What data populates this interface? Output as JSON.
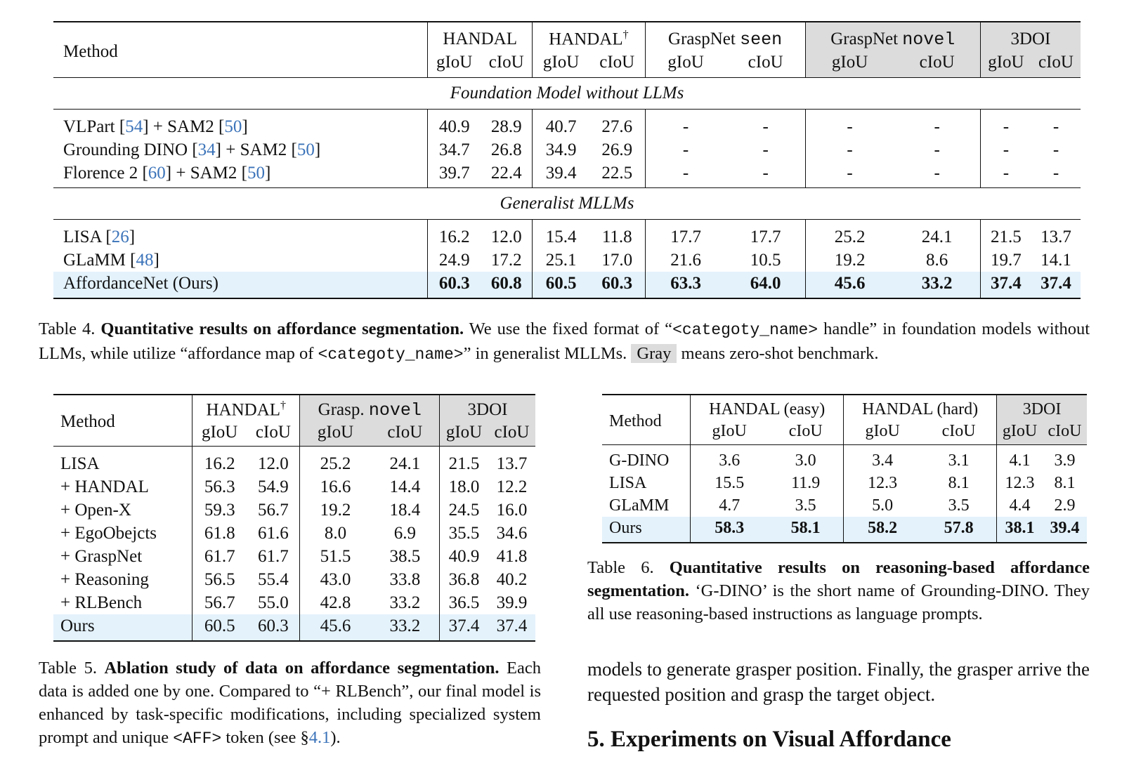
{
  "table4": {
    "method_header": "Method",
    "groups": [
      {
        "name": "HANDAL",
        "sup": "",
        "mono": "",
        "gray": false
      },
      {
        "name": "HANDAL",
        "sup": "†",
        "mono": "",
        "gray": false
      },
      {
        "name": "GraspNet ",
        "sup": "",
        "mono": "seen",
        "gray": false
      },
      {
        "name": "GraspNet ",
        "sup": "",
        "mono": "novel",
        "gray": true
      },
      {
        "name": "3DOI",
        "sup": "",
        "mono": "",
        "gray": true
      }
    ],
    "metric_giou": "gIoU",
    "metric_ciou": "cIoU",
    "section1": "Foundation Model without LLMs",
    "section2": "Generalist MLLMs",
    "rows_section1": [
      {
        "parts": [
          {
            "t": "VLPart "
          },
          {
            "t": "[",
            "c": false
          },
          {
            "t": "54",
            "c": true
          },
          {
            "t": "] + SAM2 ["
          },
          {
            "t": "50",
            "c": true
          },
          {
            "t": "]"
          }
        ],
        "values": [
          "40.9",
          "28.9",
          "40.7",
          "27.6",
          "-",
          "-",
          "-",
          "-",
          "-",
          "-"
        ]
      },
      {
        "parts": [
          {
            "t": "Grounding DINO ["
          },
          {
            "t": "34",
            "c": true
          },
          {
            "t": "] + SAM2 ["
          },
          {
            "t": "50",
            "c": true
          },
          {
            "t": "]"
          }
        ],
        "values": [
          "34.7",
          "26.8",
          "34.9",
          "26.9",
          "-",
          "-",
          "-",
          "-",
          "-",
          "-"
        ]
      },
      {
        "parts": [
          {
            "t": "Florence 2 ["
          },
          {
            "t": "60",
            "c": true
          },
          {
            "t": "] + SAM2 ["
          },
          {
            "t": "50",
            "c": true
          },
          {
            "t": "]"
          }
        ],
        "values": [
          "39.7",
          "22.4",
          "39.4",
          "22.5",
          "-",
          "-",
          "-",
          "-",
          "-",
          "-"
        ]
      }
    ],
    "rows_section2": [
      {
        "parts": [
          {
            "t": "LISA ["
          },
          {
            "t": "26",
            "c": true
          },
          {
            "t": "]"
          }
        ],
        "values": [
          "16.2",
          "12.0",
          "15.4",
          "11.8",
          "17.7",
          "17.7",
          "25.2",
          "24.1",
          "21.5",
          "13.7"
        ]
      },
      {
        "parts": [
          {
            "t": "GLaMM ["
          },
          {
            "t": "48",
            "c": true
          },
          {
            "t": "]"
          }
        ],
        "values": [
          "24.9",
          "17.2",
          "25.1",
          "17.0",
          "21.6",
          "10.5",
          "19.2",
          "8.6",
          "19.7",
          "14.1"
        ]
      },
      {
        "parts": [
          {
            "t": "AffordanceNet (Ours)"
          }
        ],
        "values": [
          "60.3",
          "60.8",
          "60.5",
          "60.3",
          "63.3",
          "64.0",
          "45.6",
          "33.2",
          "37.4",
          "37.4"
        ],
        "ours": true
      }
    ]
  },
  "caption4": {
    "label": "Table 4.",
    "title": "Quantitative results on affordance segmentation.",
    "t1": "We use the fixed format of “",
    "m1": "<categoty_name>",
    "t2": " handle” in foundation models without LLMs, while utilize “affordance map of ",
    "m2": "<categoty_name>",
    "t3": "” in generalist MLLMs. ",
    "gray_word": "Gray",
    "t4": " means zero-shot benchmark."
  },
  "table5": {
    "method_header": "Method",
    "groups": [
      {
        "name": "HANDAL",
        "sup": "†",
        "mono": "",
        "gray": false
      },
      {
        "name": "Grasp. ",
        "sup": "",
        "mono": "novel",
        "gray": true
      },
      {
        "name": "3DOI",
        "sup": "",
        "mono": "",
        "gray": true
      }
    ],
    "metric_giou": "gIoU",
    "metric_ciou": "cIoU",
    "rows": [
      {
        "method": "LISA",
        "values": [
          "16.2",
          "12.0",
          "25.2",
          "24.1",
          "21.5",
          "13.7"
        ]
      },
      {
        "method": "+ HANDAL",
        "values": [
          "56.3",
          "54.9",
          "16.6",
          "14.4",
          "18.0",
          "12.2"
        ]
      },
      {
        "method": "+ Open-X",
        "values": [
          "59.3",
          "56.7",
          "19.2",
          "18.4",
          "24.5",
          "16.0"
        ]
      },
      {
        "method": "+ EgoObejcts",
        "values": [
          "61.8",
          "61.6",
          "8.0",
          "6.9",
          "35.5",
          "34.6"
        ]
      },
      {
        "method": "+ GraspNet",
        "values": [
          "61.7",
          "61.7",
          "51.5",
          "38.5",
          "40.9",
          "41.8"
        ]
      },
      {
        "method": "+ Reasoning",
        "values": [
          "56.5",
          "55.4",
          "43.0",
          "33.8",
          "36.8",
          "40.2"
        ]
      },
      {
        "method": "+ RLBench",
        "values": [
          "56.7",
          "55.0",
          "42.8",
          "33.2",
          "36.5",
          "39.9"
        ]
      },
      {
        "method": "Ours",
        "values": [
          "60.5",
          "60.3",
          "45.6",
          "33.2",
          "37.4",
          "37.4"
        ],
        "ours": true
      }
    ]
  },
  "caption5": {
    "label": "Table 5.",
    "title": "Ablation study of data on affordance segmentation.",
    "t1": "Each data is added one by one. Compared to “+ RLBench”, our final model is enhanced by task-specific modifications, including specialized system prompt and unique ",
    "m1": "<AFF>",
    "t2": " token (see §",
    "ref": "4.1",
    "t3": ")."
  },
  "table6": {
    "method_header": "Method",
    "groups": [
      {
        "name": "HANDAL (easy)",
        "sup": "",
        "mono": "",
        "gray": false
      },
      {
        "name": "HANDAL (hard)",
        "sup": "",
        "mono": "",
        "gray": false
      },
      {
        "name": "3DOI",
        "sup": "",
        "mono": "",
        "gray": true
      }
    ],
    "metric_giou": "gIoU",
    "metric_ciou": "cIoU",
    "rows": [
      {
        "method": "G-DINO",
        "values": [
          "3.6",
          "3.0",
          "3.4",
          "3.1",
          "4.1",
          "3.9"
        ]
      },
      {
        "method": "LISA",
        "values": [
          "15.5",
          "11.9",
          "12.3",
          "8.1",
          "12.3",
          "8.1"
        ]
      },
      {
        "method": "GLaMM",
        "values": [
          "4.7",
          "3.5",
          "5.0",
          "3.5",
          "4.4",
          "2.9"
        ]
      },
      {
        "method": "Ours",
        "values": [
          "58.3",
          "58.1",
          "58.2",
          "57.8",
          "38.1",
          "39.4"
        ],
        "ours": true
      }
    ]
  },
  "caption6": {
    "label": "Table 6.",
    "title": "Quantitative results on reasoning-based affordance segmentation.",
    "t1": "‘G-DINO’ is the short name of Grounding-DINO. They all use reasoning-based instructions as language prompts."
  },
  "body_text": "models to generate grasper position. Finally, the grasper arrive the requested position and grasp the target object.",
  "section_heading": "5. Experiments on Visual Affordance"
}
